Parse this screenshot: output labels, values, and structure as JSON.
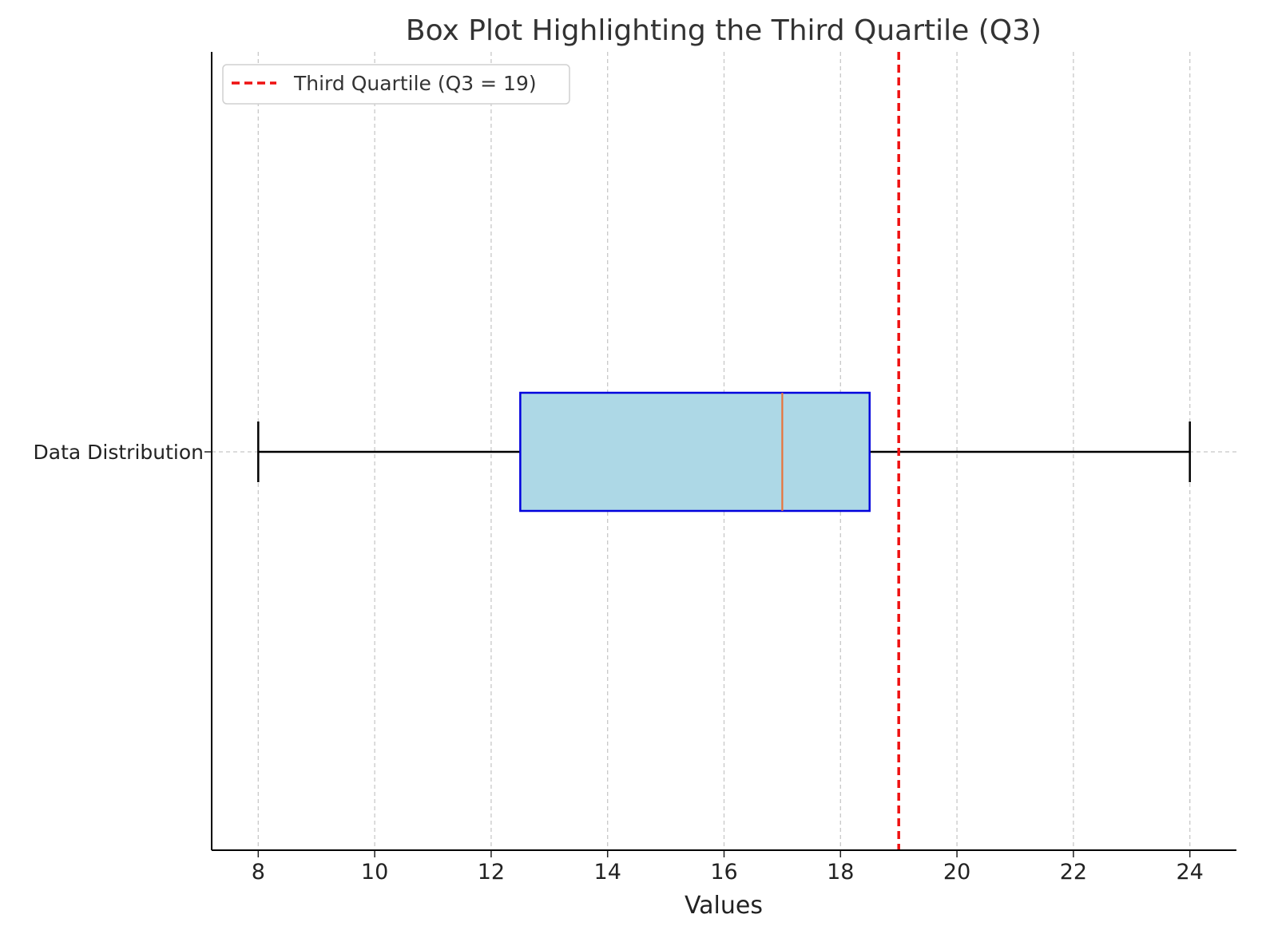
{
  "chart_data": {
    "type": "box",
    "orientation": "horizontal",
    "title": "Box Plot Highlighting the Third Quartile (Q3)",
    "xlabel": "Values",
    "ylabel": "",
    "xlim": [
      7.2,
      24.8
    ],
    "xticks": [
      8,
      10,
      12,
      14,
      16,
      18,
      20,
      22,
      24
    ],
    "grid": true,
    "legend_position": "top-left",
    "categories": [
      "Data Distribution"
    ],
    "box": {
      "name": "Data Distribution",
      "min": 8,
      "q1": 12.5,
      "median": 17,
      "q3": 18.5,
      "max": 24
    },
    "reference_line": {
      "value": 19,
      "label": "Third Quartile (Q3 = 19)",
      "color": "#ee1111",
      "style": "dashed"
    },
    "colors": {
      "box_fill": "#add8e6",
      "box_edge": "#0000dd",
      "median": "#e8733a",
      "whisker": "#000000",
      "grid": "#c8c8c8"
    }
  }
}
